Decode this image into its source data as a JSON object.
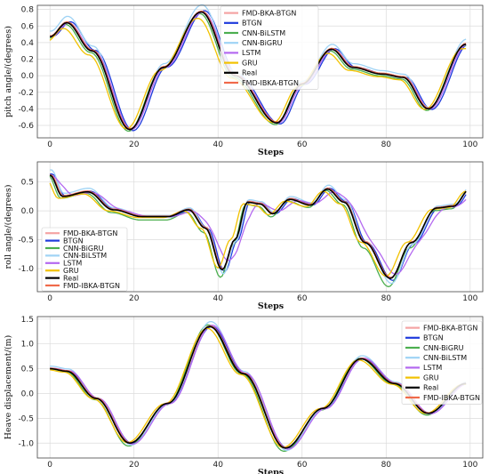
{
  "chart_data": [
    {
      "type": "line",
      "xlabel": "Steps",
      "ylabel": "pitch angle/(degrees)",
      "xlim": [
        -3,
        103
      ],
      "ylim": [
        -0.75,
        0.85
      ],
      "xticks": [
        0,
        20,
        40,
        60,
        80,
        100
      ],
      "yticks": [
        -0.6,
        -0.4,
        -0.2,
        0.0,
        0.2,
        0.4,
        0.6,
        0.8
      ],
      "ytick_labels": [
        "-0.6",
        "-0.4",
        "-0.2",
        "0.0",
        "0.2",
        "0.4",
        "0.6",
        "0.8"
      ],
      "grid": true,
      "legend_position": "top-center",
      "real_keypoints": {
        "x": [
          0,
          4,
          10,
          19,
          27,
          36,
          44,
          54,
          60,
          67,
          72,
          79,
          84,
          90,
          99
        ],
        "y": [
          0.47,
          0.64,
          0.3,
          -0.65,
          0.1,
          0.77,
          0.0,
          -0.57,
          -0.1,
          0.32,
          0.1,
          0.02,
          -0.02,
          -0.4,
          0.38
        ]
      },
      "series": [
        {
          "name": "FMD-BKA-BTGN",
          "color": "#f4a3a3",
          "dx": 0.0,
          "dy": 0.01,
          "amp": 1.0,
          "smooth": 0
        },
        {
          "name": "BTGN",
          "color": "#1f3bdc",
          "dx": 0.8,
          "dy": 0.0,
          "amp": 1.02,
          "smooth": 0
        },
        {
          "name": "CNN-BiLSTM",
          "color": "#4caf50",
          "dx": -0.3,
          "dy": -0.02,
          "amp": 1.0,
          "smooth": 0
        },
        {
          "name": "CNN-BiGRU",
          "color": "#9fd3f5",
          "dx": 0.2,
          "dy": 0.04,
          "amp": 1.06,
          "smooth": 0
        },
        {
          "name": "LSTM",
          "color": "#b469f0",
          "dx": 0.4,
          "dy": 0.0,
          "amp": 1.0,
          "smooth": 0
        },
        {
          "name": "GRU",
          "color": "#f2c200",
          "dx": -0.8,
          "dy": -0.03,
          "amp": 0.94,
          "smooth": 0
        },
        {
          "name": "Real",
          "color": "#000000",
          "dx": 0.0,
          "dy": 0.0,
          "amp": 1.0,
          "smooth": 0
        },
        {
          "name": "FMD-IBKA-BTGN",
          "color": "#f06a4a",
          "dx": 0.1,
          "dy": 0.01,
          "amp": 1.0,
          "smooth": 0
        }
      ]
    },
    {
      "type": "line",
      "xlabel": "Steps",
      "ylabel": "roll angle/(degrees)",
      "xlim": [
        -3,
        103
      ],
      "ylim": [
        -1.4,
        0.85
      ],
      "xticks": [
        0,
        20,
        40,
        60,
        80,
        100
      ],
      "yticks": [
        -1.0,
        -0.5,
        0.0,
        0.5
      ],
      "ytick_labels": [
        "-1.0",
        "-0.5",
        "0.0",
        "0.5"
      ],
      "grid": true,
      "legend_position": "bottom-left",
      "real_keypoints": {
        "x": [
          0,
          3,
          9,
          15,
          22,
          28,
          33,
          37,
          41,
          44,
          47,
          50,
          53,
          57,
          62,
          66,
          70,
          75,
          81,
          86,
          92,
          96,
          100
        ],
        "y": [
          0.62,
          0.25,
          0.33,
          0.02,
          -0.1,
          -0.1,
          0.02,
          -0.3,
          -1.02,
          -0.5,
          0.15,
          0.12,
          -0.05,
          0.2,
          0.1,
          0.38,
          0.15,
          -0.55,
          -1.17,
          -0.55,
          0.05,
          0.08,
          0.38
        ]
      },
      "series": [
        {
          "name": "FMD-BKA-BTGN",
          "color": "#f4a3a3",
          "dx": 0.2,
          "dy": 0.02,
          "amp": 1.0,
          "smooth": 0
        },
        {
          "name": "BTGN",
          "color": "#1f3bdc",
          "dx": 0.6,
          "dy": 0.0,
          "amp": 1.03,
          "smooth": 0
        },
        {
          "name": "CNN-BiGRU",
          "color": "#4caf50",
          "dx": -0.4,
          "dy": -0.05,
          "amp": 1.08,
          "smooth": 0
        },
        {
          "name": "CNN-BiLSTM",
          "color": "#9fd3f5",
          "dx": 0.3,
          "dy": 0.03,
          "amp": 1.1,
          "smooth": 0
        },
        {
          "name": "LSTM",
          "color": "#b469f0",
          "dx": 1.5,
          "dy": 0.0,
          "amp": 1.0,
          "smooth": 1
        },
        {
          "name": "GRU",
          "color": "#f2c200",
          "dx": -1.0,
          "dy": -0.02,
          "amp": 0.95,
          "smooth": 0
        },
        {
          "name": "Real",
          "color": "#000000",
          "dx": 0.0,
          "dy": 0.0,
          "amp": 1.0,
          "smooth": 0
        },
        {
          "name": "FMD-IBKA-BTGN",
          "color": "#f06a4a",
          "dx": 0.1,
          "dy": 0.01,
          "amp": 1.0,
          "smooth": 0
        }
      ]
    },
    {
      "type": "line",
      "xlabel": "Steps",
      "ylabel": "Heave displacement/(m)",
      "xlim": [
        -3,
        103
      ],
      "ylim": [
        -1.3,
        1.55
      ],
      "xticks": [
        0,
        20,
        40,
        60,
        80,
        100
      ],
      "yticks": [
        -1.0,
        -0.5,
        0.0,
        0.5,
        1.0,
        1.5
      ],
      "ytick_labels": [
        "-1.0",
        "-0.5",
        "0.0",
        "0.5",
        "1.0",
        "1.5"
      ],
      "grid": true,
      "legend_position": "top-right",
      "real_keypoints": {
        "x": [
          0,
          4,
          11,
          19,
          28,
          38,
          46,
          56,
          65,
          74,
          82,
          90,
          99
        ],
        "y": [
          0.5,
          0.45,
          -0.1,
          -1.0,
          -0.2,
          1.35,
          0.4,
          -1.1,
          -0.3,
          0.7,
          0.2,
          -0.4,
          0.2
        ]
      },
      "series": [
        {
          "name": "FMD-BKA-BTGN",
          "color": "#f4a3a3",
          "dx": 0.2,
          "dy": 0.01,
          "amp": 1.0,
          "smooth": 0
        },
        {
          "name": "BTGN",
          "color": "#1f3bdc",
          "dx": 0.5,
          "dy": 0.0,
          "amp": 1.0,
          "smooth": 0
        },
        {
          "name": "CNN-BiGRU",
          "color": "#4caf50",
          "dx": -0.3,
          "dy": -0.02,
          "amp": 1.04,
          "smooth": 0
        },
        {
          "name": "CNN-BiLSTM",
          "color": "#9fd3f5",
          "dx": 0.3,
          "dy": 0.02,
          "amp": 1.06,
          "smooth": 0
        },
        {
          "name": "LSTM",
          "color": "#b469f0",
          "dx": 0.6,
          "dy": 0.0,
          "amp": 1.02,
          "smooth": 0
        },
        {
          "name": "GRU",
          "color": "#f2c200",
          "dx": -0.6,
          "dy": -0.01,
          "amp": 0.98,
          "smooth": 0
        },
        {
          "name": "Real",
          "color": "#000000",
          "dx": 0.0,
          "dy": 0.0,
          "amp": 1.0,
          "smooth": 0
        },
        {
          "name": "FMD-IBKA-BTGN",
          "color": "#f06a4a",
          "dx": 0.1,
          "dy": 0.01,
          "amp": 1.0,
          "smooth": 0
        }
      ]
    }
  ]
}
